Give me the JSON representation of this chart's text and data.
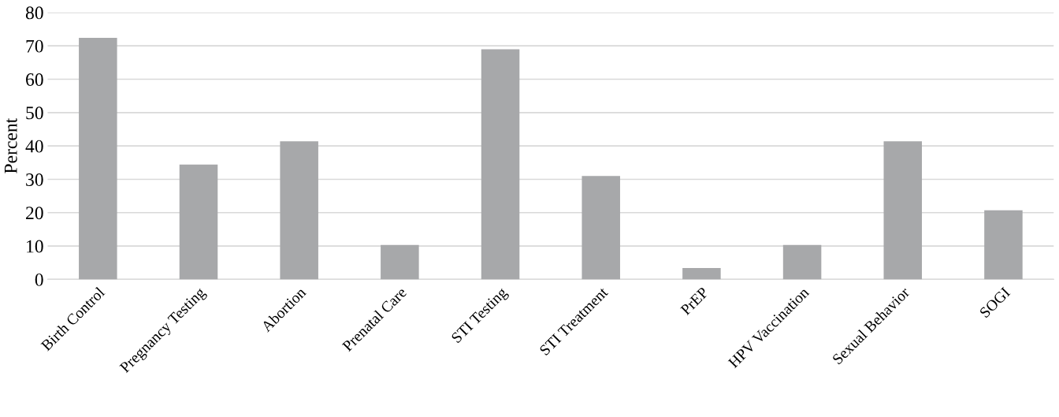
{
  "chart_data": {
    "type": "bar",
    "ylabel": "Percent",
    "categories": [
      "Birth Control",
      "Pregnancy Testing",
      "Abortion",
      "Prenatal Care",
      "STI Testing",
      "STI Treatment",
      "PrEP",
      "HPV Vaccination",
      "Sexual Behavior",
      "SOGI"
    ],
    "values": [
      72.4,
      34.4,
      41.4,
      10.3,
      69.0,
      31.0,
      3.4,
      10.3,
      41.4,
      20.7
    ],
    "color": "#a7a8aa",
    "ylim": [
      0,
      80
    ],
    "yticks": [
      0,
      10,
      20,
      30,
      40,
      50,
      60,
      70,
      80
    ],
    "grid": "y"
  }
}
